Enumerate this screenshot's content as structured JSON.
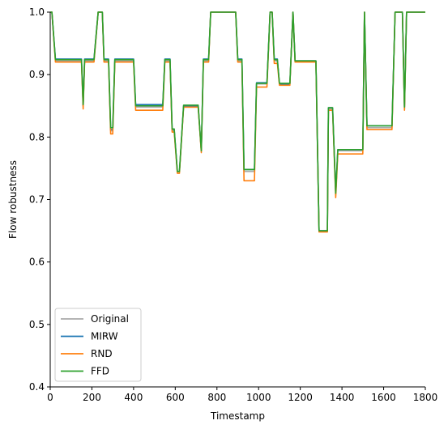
{
  "chart_data": {
    "type": "line",
    "xlabel": "Timestamp",
    "ylabel": "Flow robustness",
    "xlim": [
      0,
      1800
    ],
    "ylim": [
      0.4,
      1.0
    ],
    "x_ticks": [
      0,
      200,
      400,
      600,
      800,
      1000,
      1200,
      1400,
      1600,
      1800
    ],
    "y_ticks": [
      0.4,
      0.5,
      0.6,
      0.7,
      0.8,
      0.9,
      1.0
    ],
    "y_tick_labels": [
      "0.4",
      "0.5",
      "0.6",
      "0.7",
      "0.8",
      "0.9",
      "1.0"
    ],
    "x_tick_labels": [
      "0",
      "200",
      "400",
      "600",
      "800",
      "1000",
      "1200",
      "1400",
      "1600",
      "1800"
    ],
    "grid": false,
    "legend_position": "lower-left",
    "series": [
      {
        "name": "Original",
        "color": "#aaaaaa",
        "x": [
          0,
          8,
          25,
          150,
          158,
          165,
          210,
          230,
          250,
          258,
          268,
          280,
          290,
          300,
          310,
          400,
          410,
          540,
          550,
          575,
          585,
          595,
          610,
          620,
          640,
          650,
          710,
          725,
          735,
          760,
          770,
          890,
          900,
          920,
          930,
          980,
          990,
          1040,
          1055,
          1065,
          1075,
          1090,
          1100,
          1150,
          1165,
          1175,
          1275,
          1290,
          1330,
          1335,
          1350,
          1355,
          1370,
          1380,
          1390,
          1400,
          1500,
          1508,
          1520,
          1640,
          1655,
          1690,
          1700,
          1710,
          1720,
          1800
        ],
        "y": [
          1.0,
          1.0,
          0.922,
          0.922,
          0.85,
          0.922,
          0.922,
          1.0,
          1.0,
          0.922,
          0.922,
          0.922,
          0.81,
          0.81,
          0.922,
          0.922,
          0.848,
          0.848,
          0.922,
          0.922,
          0.81,
          0.81,
          0.745,
          0.745,
          0.848,
          0.848,
          0.848,
          0.778,
          0.922,
          0.922,
          1.0,
          1.0,
          0.922,
          0.922,
          0.745,
          0.745,
          0.885,
          0.885,
          1.0,
          1.0,
          0.922,
          0.922,
          0.885,
          0.885,
          1.0,
          0.922,
          0.922,
          0.65,
          0.65,
          0.845,
          0.845,
          0.845,
          0.71,
          0.778,
          0.778,
          0.778,
          0.778,
          1.0,
          0.815,
          0.815,
          1.0,
          1.0,
          0.845,
          1.0,
          1.0,
          1.0
        ]
      },
      {
        "name": "MIRW",
        "color": "#1f77b4",
        "x": [
          0,
          8,
          25,
          150,
          158,
          165,
          210,
          230,
          250,
          258,
          268,
          280,
          290,
          300,
          310,
          400,
          410,
          540,
          550,
          575,
          585,
          595,
          610,
          620,
          640,
          650,
          710,
          725,
          735,
          760,
          770,
          890,
          900,
          920,
          930,
          980,
          990,
          1040,
          1055,
          1065,
          1075,
          1090,
          1100,
          1150,
          1165,
          1175,
          1275,
          1290,
          1330,
          1335,
          1350,
          1355,
          1370,
          1380,
          1390,
          1400,
          1500,
          1508,
          1520,
          1640,
          1655,
          1690,
          1700,
          1710,
          1720,
          1800
        ],
        "y": [
          1.0,
          1.0,
          0.925,
          0.925,
          0.85,
          0.925,
          0.925,
          1.0,
          1.0,
          0.925,
          0.925,
          0.925,
          0.812,
          0.812,
          0.925,
          0.925,
          0.852,
          0.852,
          0.925,
          0.925,
          0.812,
          0.812,
          0.745,
          0.745,
          0.85,
          0.85,
          0.85,
          0.778,
          0.925,
          0.925,
          1.0,
          1.0,
          0.925,
          0.925,
          0.748,
          0.748,
          0.887,
          0.887,
          1.0,
          1.0,
          0.925,
          0.925,
          0.885,
          0.885,
          1.0,
          0.922,
          0.922,
          0.65,
          0.65,
          0.847,
          0.847,
          0.847,
          0.71,
          0.78,
          0.78,
          0.78,
          0.78,
          1.0,
          0.818,
          0.818,
          1.0,
          1.0,
          0.848,
          1.0,
          1.0,
          1.0
        ]
      },
      {
        "name": "RND",
        "color": "#ff7f0e",
        "x": [
          0,
          8,
          25,
          150,
          158,
          165,
          210,
          230,
          250,
          258,
          268,
          280,
          290,
          300,
          310,
          400,
          410,
          540,
          550,
          575,
          585,
          595,
          610,
          620,
          640,
          650,
          710,
          725,
          735,
          760,
          770,
          890,
          900,
          920,
          930,
          980,
          990,
          1040,
          1055,
          1065,
          1075,
          1090,
          1100,
          1150,
          1165,
          1175,
          1275,
          1290,
          1330,
          1335,
          1350,
          1355,
          1370,
          1380,
          1390,
          1400,
          1500,
          1508,
          1520,
          1640,
          1655,
          1690,
          1700,
          1710,
          1720,
          1800
        ],
        "y": [
          1.0,
          1.0,
          0.92,
          0.92,
          0.845,
          0.92,
          0.92,
          1.0,
          1.0,
          0.92,
          0.92,
          0.92,
          0.805,
          0.805,
          0.92,
          0.92,
          0.843,
          0.843,
          0.92,
          0.92,
          0.808,
          0.808,
          0.742,
          0.742,
          0.848,
          0.848,
          0.848,
          0.775,
          0.92,
          0.92,
          1.0,
          1.0,
          0.92,
          0.92,
          0.73,
          0.73,
          0.88,
          0.88,
          1.0,
          1.0,
          0.918,
          0.918,
          0.883,
          0.883,
          1.0,
          0.92,
          0.92,
          0.648,
          0.648,
          0.843,
          0.843,
          0.843,
          0.703,
          0.773,
          0.773,
          0.773,
          0.773,
          1.0,
          0.812,
          0.812,
          1.0,
          1.0,
          0.843,
          1.0,
          1.0,
          1.0
        ]
      },
      {
        "name": "FFD",
        "color": "#2ca02c",
        "x": [
          0,
          8,
          25,
          150,
          158,
          165,
          210,
          230,
          250,
          258,
          268,
          280,
          290,
          300,
          310,
          400,
          410,
          540,
          550,
          575,
          585,
          595,
          610,
          620,
          640,
          650,
          710,
          725,
          735,
          760,
          770,
          890,
          900,
          920,
          930,
          980,
          990,
          1040,
          1055,
          1065,
          1075,
          1090,
          1100,
          1150,
          1165,
          1175,
          1275,
          1290,
          1330,
          1335,
          1350,
          1355,
          1370,
          1380,
          1390,
          1400,
          1500,
          1508,
          1520,
          1640,
          1655,
          1690,
          1700,
          1710,
          1720,
          1800
        ],
        "y": [
          1.0,
          1.0,
          0.924,
          0.924,
          0.852,
          0.924,
          0.924,
          1.0,
          1.0,
          0.924,
          0.924,
          0.924,
          0.815,
          0.815,
          0.924,
          0.924,
          0.85,
          0.85,
          0.924,
          0.924,
          0.813,
          0.813,
          0.745,
          0.745,
          0.851,
          0.851,
          0.851,
          0.778,
          0.924,
          0.924,
          1.0,
          1.0,
          0.924,
          0.924,
          0.748,
          0.748,
          0.886,
          0.886,
          1.0,
          1.0,
          0.924,
          0.924,
          0.886,
          0.886,
          1.0,
          0.922,
          0.922,
          0.65,
          0.65,
          0.847,
          0.847,
          0.847,
          0.71,
          0.78,
          0.78,
          0.78,
          0.78,
          1.0,
          0.818,
          0.818,
          1.0,
          1.0,
          0.848,
          1.0,
          1.0,
          1.0
        ]
      }
    ]
  }
}
